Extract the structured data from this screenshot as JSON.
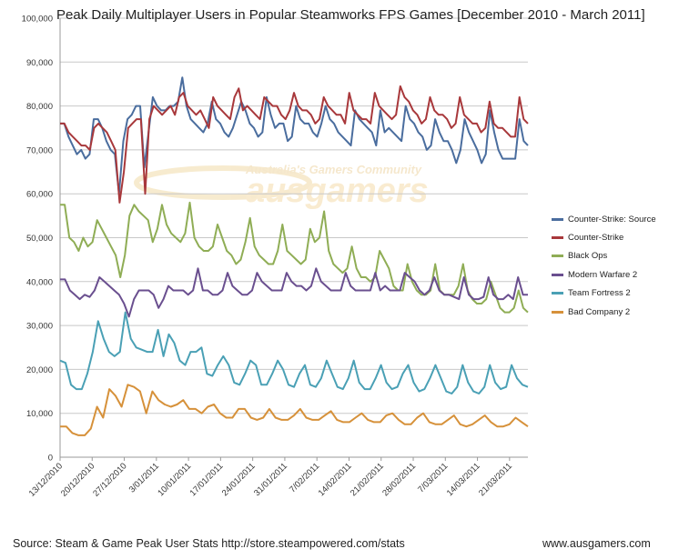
{
  "chart_data": {
    "type": "line",
    "title": "Peak Daily Multiplayer Users in Popular Steamworks FPS Games [December 2010 - March 2011]",
    "ylim": [
      0,
      100000
    ],
    "yticks": [
      0,
      10000,
      20000,
      30000,
      40000,
      50000,
      60000,
      70000,
      80000,
      90000,
      100000
    ],
    "ytick_labels": [
      "0",
      "10,000",
      "20,000",
      "30,000",
      "40,000",
      "50,000",
      "60,000",
      "70,000",
      "80,000",
      "90,000",
      "100,000"
    ],
    "xtick_labels": [
      "13/12/2010",
      "20/12/2010",
      "27/12/2010",
      "3/01/2011",
      "10/01/2011",
      "17/01/2011",
      "24/01/2011",
      "31/01/2011",
      "7/02/2011",
      "14/02/2011",
      "21/02/2011",
      "28/02/2011",
      "7/03/2011",
      "14/03/2011",
      "21/03/2011"
    ],
    "x_start": "2010-12-13",
    "x_end": "2011-03-25",
    "grid": true,
    "legend_position": "right",
    "watermark": "Australia's Gamers Community ausgamers",
    "series": [
      {
        "name": "Counter-Strike: Source",
        "color": "#4a6d9e",
        "values": [
          76000,
          76000,
          73000,
          71000,
          69000,
          70000,
          68000,
          69000,
          77000,
          77000,
          75000,
          72000,
          70000,
          69000,
          60000,
          72000,
          77000,
          78000,
          80000,
          80000,
          66000,
          74000,
          82000,
          80000,
          79000,
          79000,
          80000,
          80000,
          81000,
          86500,
          80000,
          77000,
          76000,
          75000,
          74000,
          76000,
          81000,
          77000,
          76000,
          74000,
          73000,
          75000,
          78000,
          81000,
          79000,
          76000,
          75000,
          73000,
          74000,
          82000,
          78000,
          75000,
          76000,
          76000,
          72000,
          73000,
          80000,
          77000,
          76000,
          76000,
          74000,
          73000,
          76000,
          80000,
          77000,
          76000,
          74000,
          73000,
          72000,
          71000,
          79000,
          77000,
          76000,
          75000,
          74000,
          71000,
          79000,
          74000,
          75000,
          74000,
          73000,
          72000,
          80000,
          77000,
          76000,
          74000,
          73000,
          70000,
          71000,
          77000,
          74000,
          72000,
          72000,
          70000,
          67000,
          70000,
          77000,
          74000,
          72000,
          70000,
          67000,
          69000,
          79000,
          74000,
          70000,
          68000,
          68000,
          68000,
          68000,
          77000,
          72000,
          71000
        ]
      },
      {
        "name": "Counter-Strike",
        "color": "#a8383b",
        "values": [
          76000,
          76000,
          74000,
          73000,
          72000,
          71000,
          71000,
          70000,
          75000,
          76000,
          75000,
          74000,
          72000,
          70000,
          58000,
          65000,
          75000,
          76000,
          77000,
          77000,
          60000,
          77000,
          80000,
          79000,
          78000,
          79000,
          80000,
          78000,
          82000,
          83000,
          80000,
          79000,
          78000,
          79000,
          77000,
          75000,
          82000,
          80000,
          79000,
          78000,
          77000,
          82000,
          84000,
          79000,
          80000,
          79000,
          78000,
          77000,
          82000,
          81000,
          80000,
          80000,
          78000,
          77000,
          79000,
          83000,
          80000,
          79000,
          79000,
          78000,
          76000,
          77000,
          82000,
          80000,
          79000,
          78000,
          78000,
          76000,
          83000,
          79000,
          78000,
          77000,
          77000,
          76000,
          83000,
          80000,
          79000,
          78000,
          77000,
          78000,
          84500,
          82000,
          81000,
          79000,
          78000,
          76000,
          77000,
          82000,
          79000,
          78000,
          78000,
          77000,
          75000,
          76000,
          82000,
          78000,
          77000,
          76000,
          76000,
          74000,
          75000,
          81000,
          76000,
          75000,
          75000,
          74000,
          73000,
          73000,
          82000,
          77000,
          76000
        ]
      },
      {
        "name": "Black Ops",
        "color": "#8fad55",
        "values": [
          57500,
          57500,
          50000,
          49000,
          47000,
          50000,
          48000,
          49000,
          54000,
          52000,
          50000,
          48000,
          46000,
          41000,
          46000,
          55000,
          57500,
          56000,
          55000,
          54000,
          49000,
          52000,
          57500,
          53000,
          51000,
          50000,
          49000,
          51000,
          58000,
          50000,
          48000,
          47000,
          47000,
          48000,
          53000,
          50000,
          47000,
          46000,
          44000,
          45000,
          49000,
          54500,
          48000,
          46000,
          45000,
          44000,
          44000,
          47000,
          53000,
          47000,
          46000,
          45000,
          44000,
          45000,
          52000,
          49000,
          50000,
          56000,
          47000,
          44000,
          43000,
          42000,
          43000,
          48000,
          43000,
          41000,
          41000,
          40000,
          41000,
          47000,
          45000,
          43000,
          39000,
          38000,
          38000,
          44000,
          40000,
          38000,
          37000,
          37000,
          38000,
          44000,
          38000,
          37000,
          37000,
          37000,
          39000,
          44000,
          38000,
          36000,
          35000,
          35000,
          36000,
          40000,
          37000,
          34000,
          33000,
          33000,
          34000,
          38000,
          34000,
          33000
        ]
      },
      {
        "name": "Modern Warfare 2",
        "color": "#6a4f8f",
        "values": [
          40500,
          40500,
          38000,
          37000,
          36000,
          37000,
          36500,
          38000,
          41000,
          40000,
          39000,
          38000,
          37000,
          35000,
          32000,
          36000,
          38000,
          38000,
          38000,
          37000,
          34000,
          36000,
          39000,
          38000,
          38000,
          38000,
          37000,
          38000,
          43000,
          38000,
          38000,
          37000,
          37000,
          38000,
          42000,
          39000,
          38000,
          37000,
          37000,
          38000,
          42000,
          40000,
          39000,
          38000,
          38000,
          38000,
          42000,
          40000,
          39000,
          39000,
          38000,
          39000,
          43000,
          40000,
          39000,
          38000,
          38000,
          38000,
          42000,
          39000,
          38000,
          38000,
          38000,
          38000,
          42000,
          38000,
          39000,
          38000,
          38000,
          38000,
          42000,
          41000,
          40000,
          38000,
          37000,
          38000,
          41000,
          38000,
          37000,
          37000,
          36500,
          36000,
          41000,
          37000,
          36000,
          36000,
          36500,
          41000,
          37000,
          36000,
          36000,
          37000,
          36000,
          41000,
          37000,
          37000
        ]
      },
      {
        "name": "Team Fortress 2",
        "color": "#4aa0b5",
        "values": [
          22000,
          21500,
          16500,
          15500,
          15500,
          19000,
          24000,
          31000,
          27000,
          24000,
          23000,
          24000,
          33000,
          27000,
          25000,
          24500,
          24000,
          24000,
          29000,
          23000,
          28000,
          26000,
          22000,
          21000,
          24000,
          24000,
          25000,
          19000,
          18500,
          21000,
          23000,
          21000,
          17000,
          16500,
          19000,
          22000,
          21000,
          16500,
          16500,
          19000,
          22000,
          20000,
          16500,
          16000,
          19000,
          21000,
          16500,
          16000,
          18000,
          22000,
          19000,
          16000,
          15500,
          18000,
          22000,
          17000,
          15500,
          15500,
          18000,
          21000,
          17000,
          15500,
          16000,
          19000,
          21000,
          17000,
          15000,
          15500,
          18000,
          21000,
          18000,
          15000,
          14500,
          16000,
          21000,
          17000,
          15000,
          14500,
          16000,
          21000,
          17000,
          15500,
          16000,
          21000,
          18000,
          16500,
          16000
        ]
      },
      {
        "name": "Bad Company 2",
        "color": "#d6913a",
        "values": [
          7000,
          7000,
          5500,
          5000,
          5000,
          6500,
          11500,
          9000,
          15500,
          14000,
          11500,
          16500,
          16000,
          15000,
          10000,
          15000,
          13000,
          12000,
          11500,
          12000,
          13000,
          11000,
          11000,
          10000,
          11500,
          12000,
          10000,
          9000,
          9000,
          11000,
          11000,
          9000,
          8500,
          9000,
          11000,
          9000,
          8500,
          8500,
          9500,
          11000,
          9000,
          8500,
          8500,
          9500,
          10500,
          8500,
          8000,
          8000,
          9000,
          10000,
          8500,
          8000,
          8000,
          9500,
          10000,
          8500,
          7500,
          7500,
          9000,
          10000,
          8000,
          7500,
          7500,
          8500,
          9500,
          7500,
          7000,
          7500,
          8500,
          9500,
          8000,
          7000,
          7000,
          7500,
          9000,
          8000,
          7000
        ]
      }
    ]
  },
  "footer": {
    "source": "Source: Steam & Game Peak User Stats http://store.steampowered.com/stats",
    "site": "www.ausgamers.com"
  }
}
